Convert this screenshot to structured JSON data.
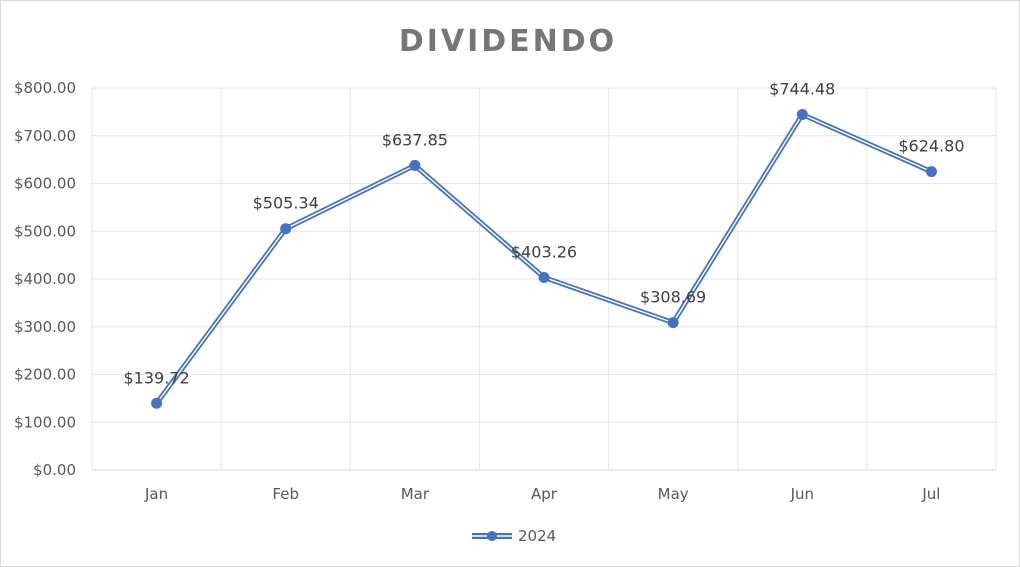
{
  "chart_data": {
    "type": "line",
    "title": "DIVIDENDO",
    "categories": [
      "Jan",
      "Feb",
      "Mar",
      "Apr",
      "May",
      "Jun",
      "Jul"
    ],
    "series": [
      {
        "name": "2024",
        "values": [
          139.72,
          505.34,
          637.85,
          403.26,
          308.69,
          744.48,
          624.8
        ],
        "labels": [
          "$139.72",
          "$505.34",
          "$637.85",
          "$403.26",
          "$308.69",
          "$744.48",
          "$624.80"
        ]
      }
    ],
    "ylim": [
      0,
      800
    ],
    "yticks": [
      0,
      100,
      200,
      300,
      400,
      500,
      600,
      700,
      800
    ],
    "ytick_labels": [
      "$0.00",
      "$100.00",
      "$200.00",
      "$300.00",
      "$400.00",
      "$500.00",
      "$600.00",
      "$700.00",
      "$800.00"
    ],
    "grid": true,
    "legend": "bottom",
    "colors": {
      "line": "#4472c4",
      "grid": "#e6e6e6",
      "axis": "#d9d9d9"
    }
  }
}
